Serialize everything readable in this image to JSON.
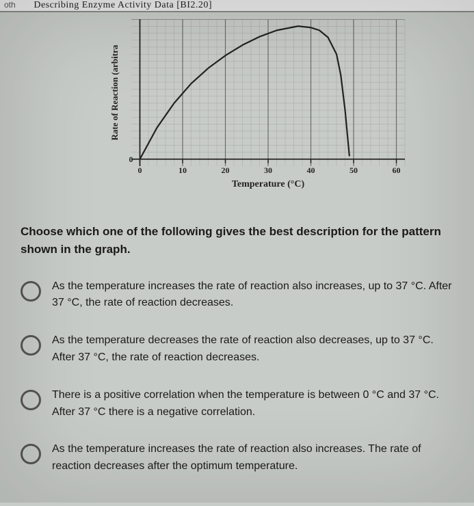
{
  "header": {
    "partial_title": "Describing Enzyme Activity Data [BI2.20]",
    "tab_fragment": "oth"
  },
  "chart": {
    "type": "line",
    "xlabel": "Temperature (°C)",
    "ylabel": "Rate of Reaction (arbitra",
    "label_fontsize": 12,
    "xlim": [
      -2,
      62
    ],
    "ylim": [
      -1,
      20
    ],
    "xtick_step": 10,
    "xticks": [
      0,
      10,
      20,
      30,
      40,
      50,
      60
    ],
    "major_y_lines": [
      0,
      20
    ],
    "minor_grid": true,
    "minor_step_x": 2,
    "minor_step_y": 1,
    "grid_color": "#6b6b6b",
    "minor_grid_color": "#8a8a8a",
    "background_color": "#c8ccc8",
    "line_color": "#222222",
    "line_width": 2.2,
    "points": [
      {
        "x": 0,
        "y": 0
      },
      {
        "x": 4,
        "y": 4.5
      },
      {
        "x": 8,
        "y": 8
      },
      {
        "x": 12,
        "y": 10.8
      },
      {
        "x": 16,
        "y": 13
      },
      {
        "x": 20,
        "y": 14.8
      },
      {
        "x": 24,
        "y": 16.3
      },
      {
        "x": 28,
        "y": 17.5
      },
      {
        "x": 32,
        "y": 18.4
      },
      {
        "x": 37,
        "y": 19.0
      },
      {
        "x": 40,
        "y": 18.8
      },
      {
        "x": 42,
        "y": 18.4
      },
      {
        "x": 44,
        "y": 17.4
      },
      {
        "x": 46,
        "y": 15.0
      },
      {
        "x": 47,
        "y": 12.0
      },
      {
        "x": 48,
        "y": 7.0
      },
      {
        "x": 49,
        "y": 0.5
      }
    ]
  },
  "question": "Choose which one of the following gives the best description for the pattern shown in the graph.",
  "options": [
    "As the temperature increases the rate of reaction also increases, up to 37 °C. After 37 °C, the rate of reaction decreases.",
    "As the temperature decreases the rate of reaction also decreases, up to 37 °C. After 37 °C, the rate of reaction decreases.",
    "There is a positive correlation when the temperature is between 0 °C and 37 °C. After 37 °C there is a negative correlation.",
    "As the temperature increases the rate of reaction also increases. The rate of reaction decreases after the optimum temperature."
  ]
}
